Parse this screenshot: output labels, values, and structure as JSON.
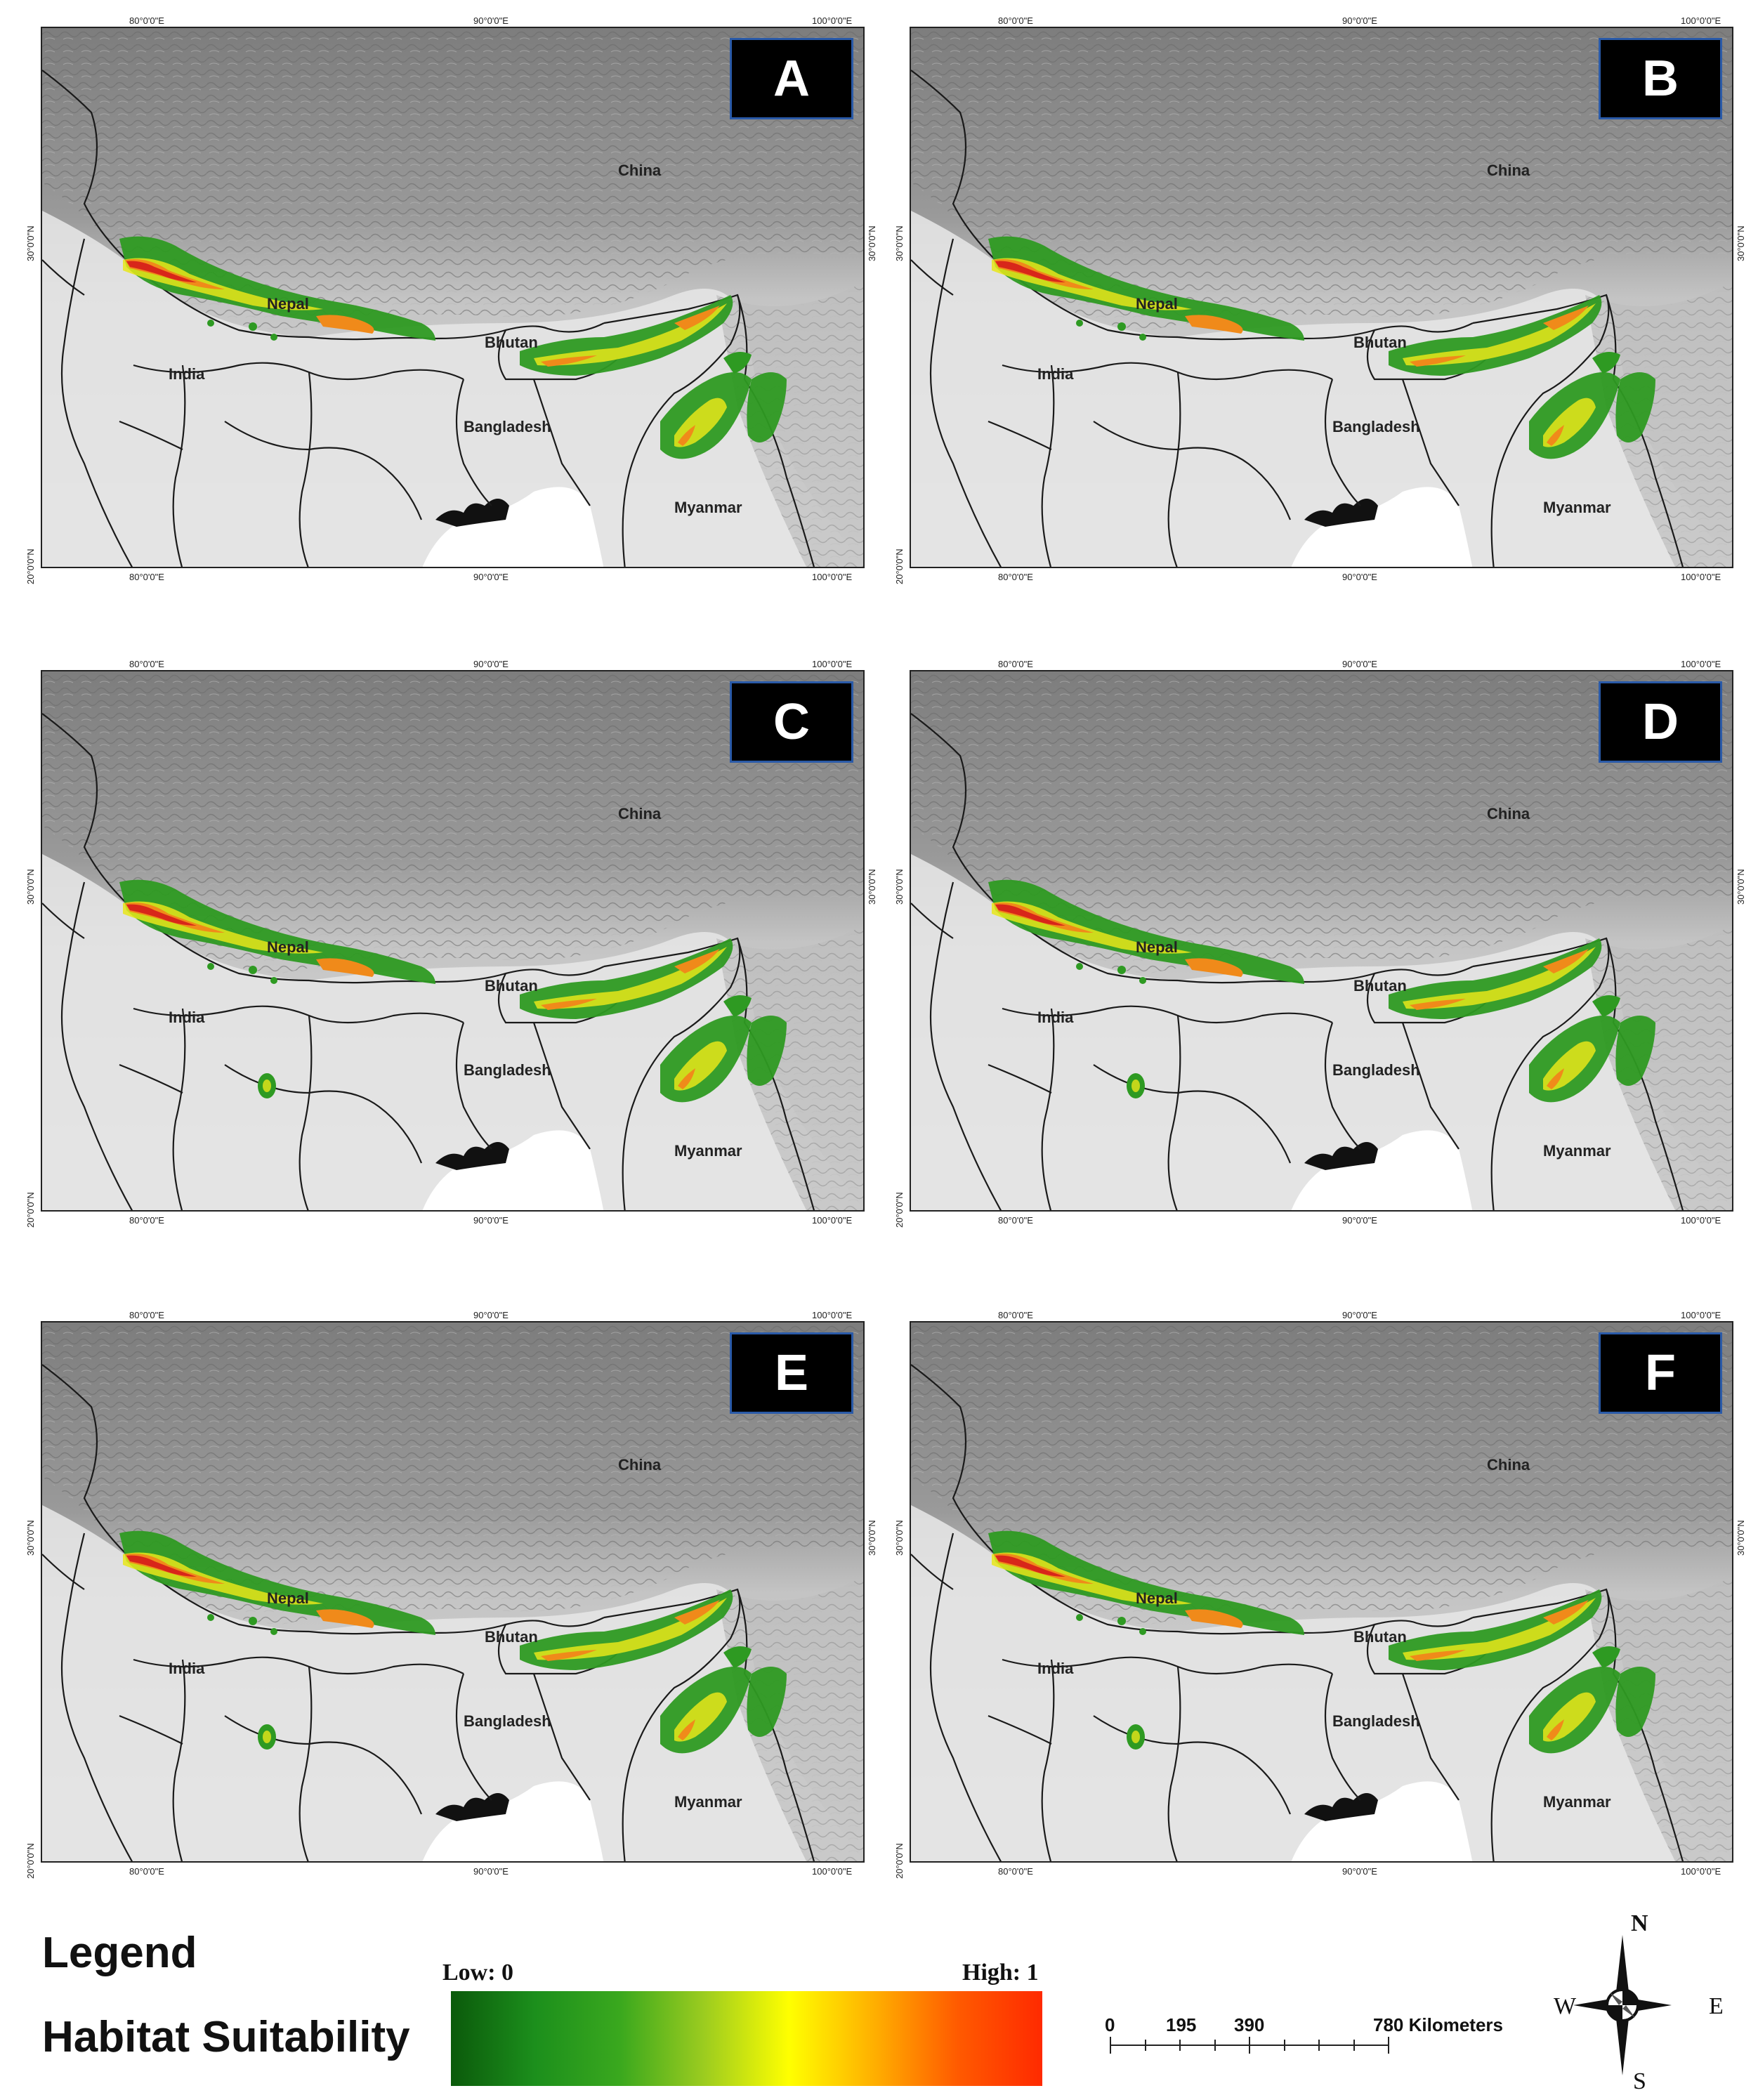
{
  "panels": [
    {
      "label": "A"
    },
    {
      "label": "B"
    },
    {
      "label": "C"
    },
    {
      "label": "D"
    },
    {
      "label": "E"
    },
    {
      "label": "F"
    }
  ],
  "axes": {
    "top_ticks": [
      "80°0'0\"E",
      "90°0'0\"E",
      "100°0'0\"E"
    ],
    "bottom_ticks": [
      "80°0'0\"E",
      "90°0'0\"E",
      "100°0'0\"E"
    ],
    "left_ticks": [
      "30°0'0\"N",
      "20°0'0\"N"
    ],
    "right_ticks": [
      "30°0'0\"N"
    ]
  },
  "countries": {
    "china": "China",
    "nepal": "Nepal",
    "bhutan": "Bhutan",
    "india": "India",
    "bangladesh": "Bangladesh",
    "myanmar": "Myanmar"
  },
  "legend": {
    "title": "Legend",
    "subtitle": "Habitat Suitability",
    "low": "Low: 0",
    "high": "High: 1",
    "colors": [
      "#0b5a0b",
      "#1c8f1c",
      "#3aa81e",
      "#9ccc1f",
      "#ffff00",
      "#ffb000",
      "#ff5a00",
      "#ff2a00"
    ]
  },
  "scalebar": {
    "labels": [
      "0",
      "195",
      "390",
      "780 Kilometers"
    ]
  },
  "compass": {
    "n": "N",
    "s": "S",
    "e": "E",
    "w": "W"
  },
  "colors": {
    "terrain_dark": "#8a8a8a",
    "terrain_light": "#dcdcdc",
    "border": "#1a1a1a",
    "suit_green": "#2e9a22",
    "suit_yellow": "#e8e61a",
    "suit_orange": "#f08a1a",
    "suit_red": "#d8261a"
  }
}
